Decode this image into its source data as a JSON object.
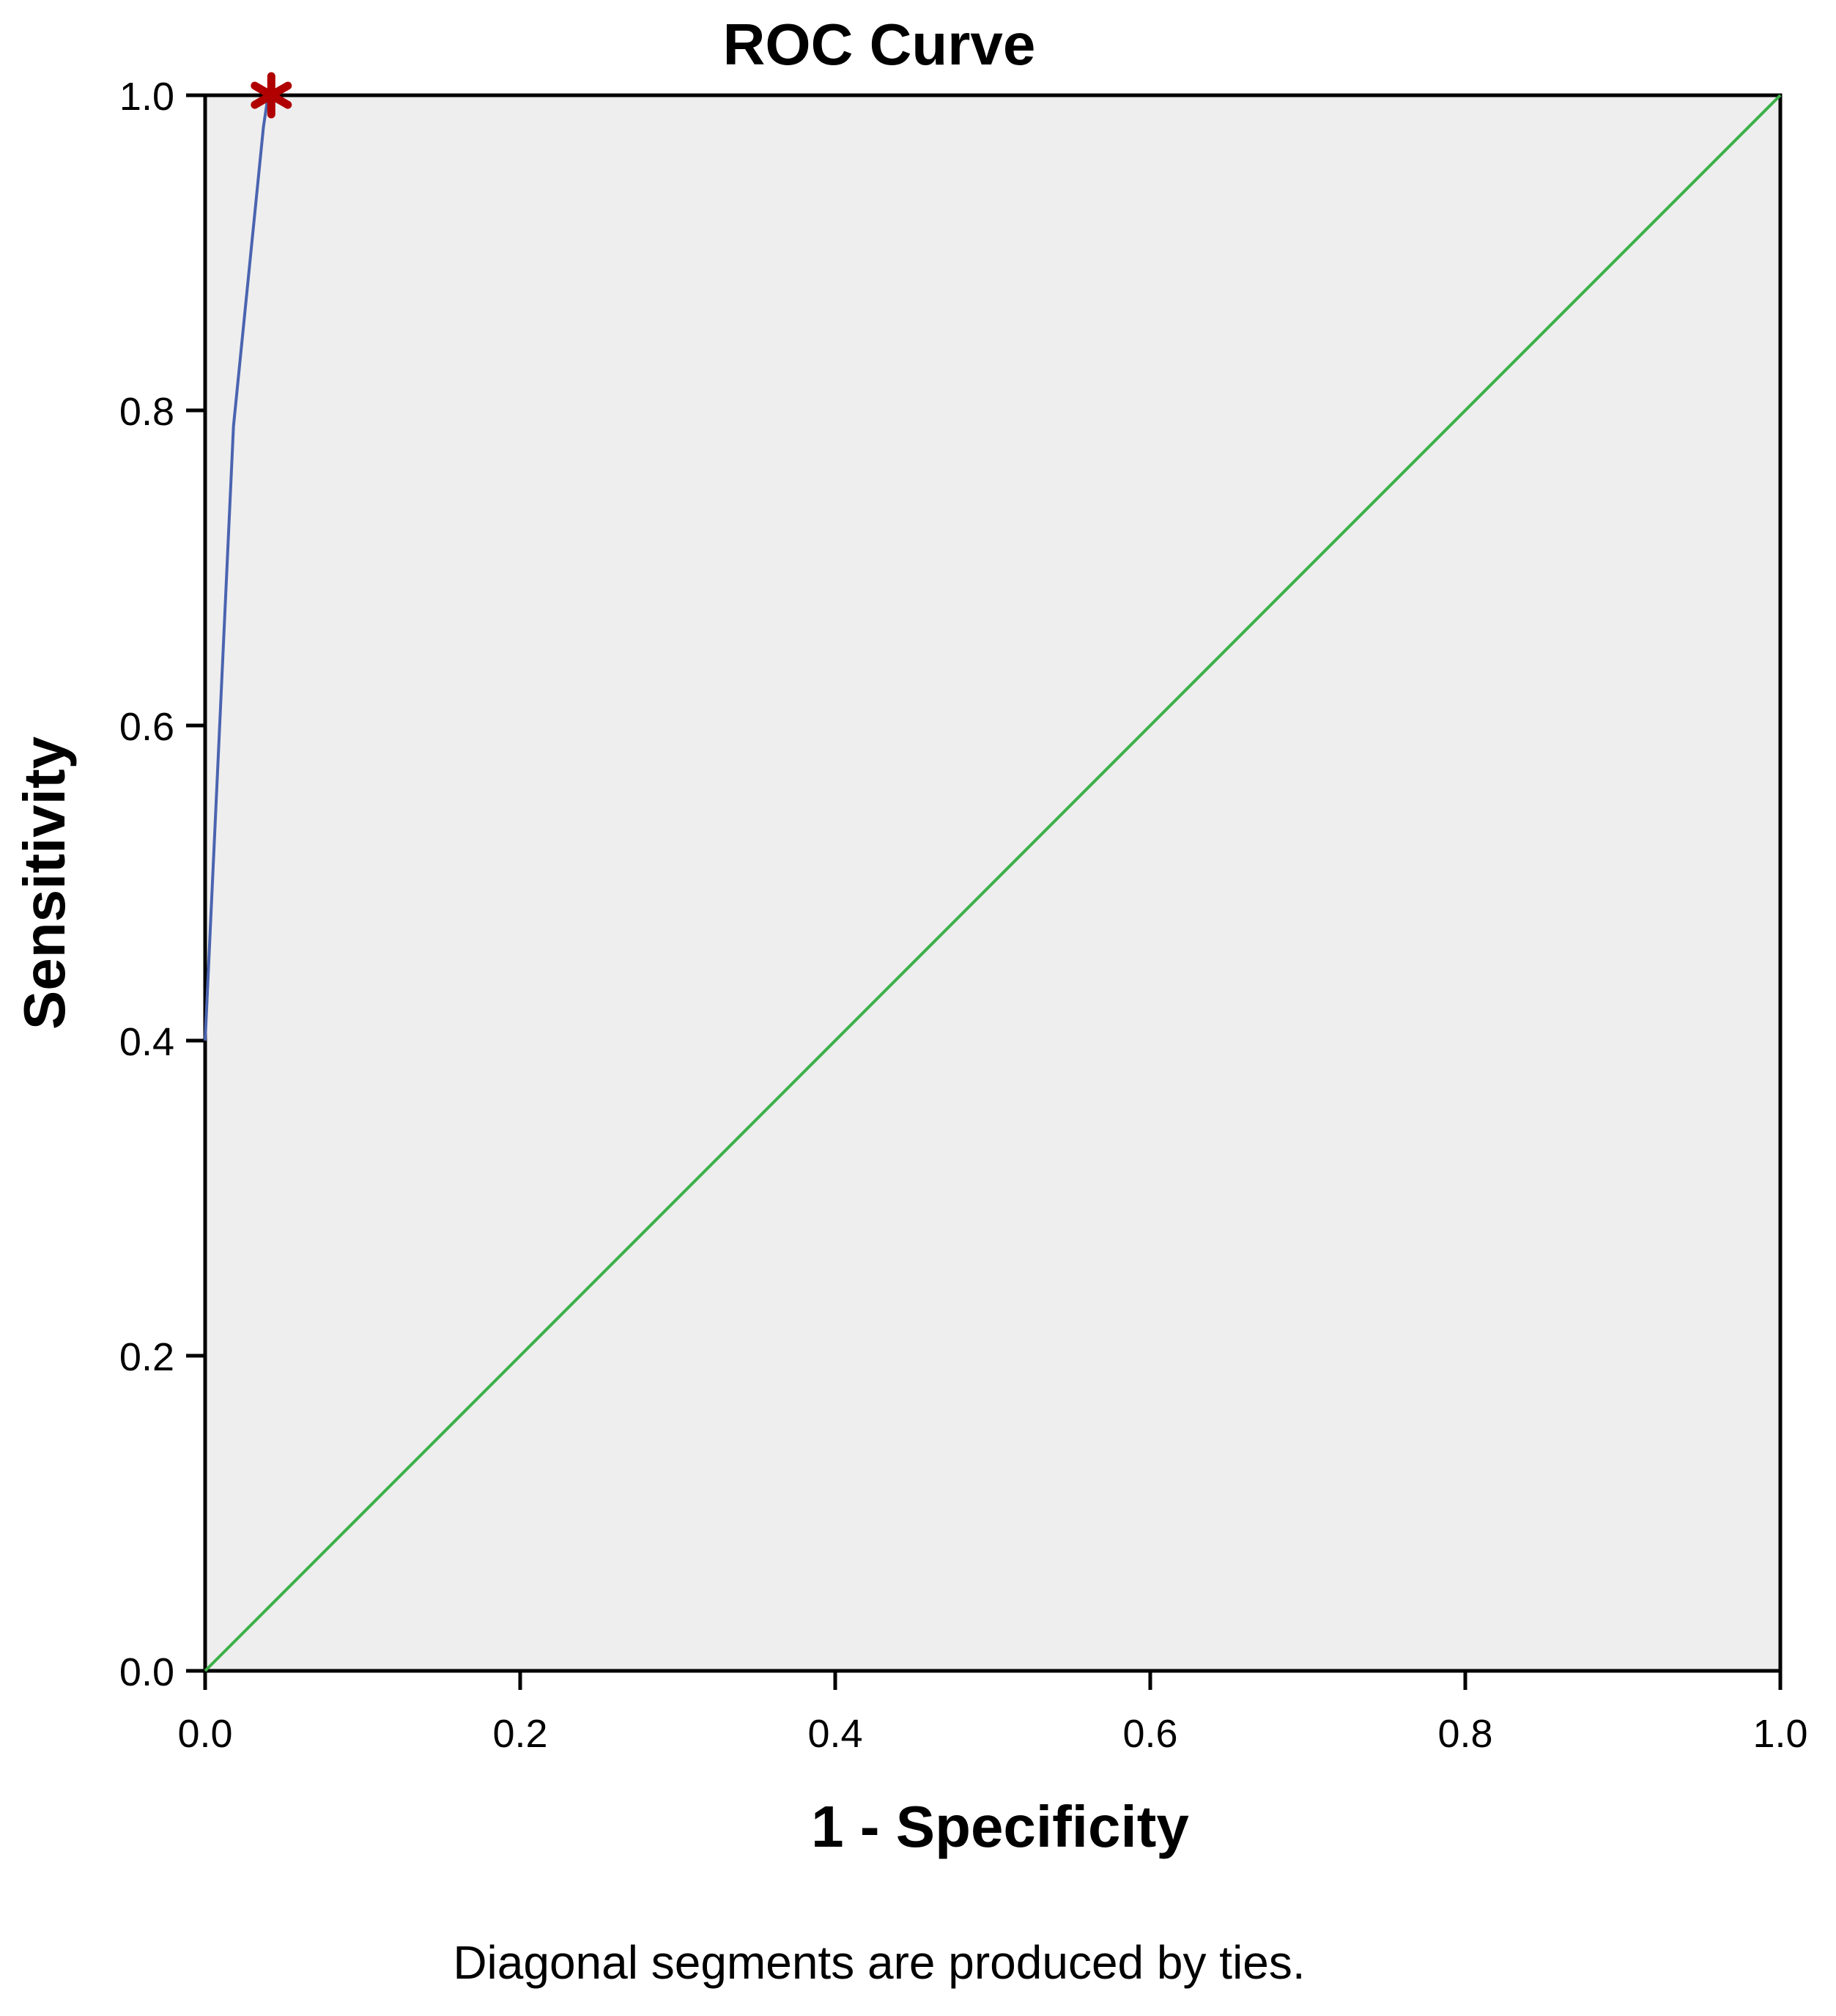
{
  "chart_data": {
    "type": "line",
    "title": "ROC Curve",
    "xlabel": "1 - Specificity",
    "ylabel": "Sensitivity",
    "xlim": [
      0,
      1
    ],
    "ylim": [
      0,
      1
    ],
    "x_ticks": [
      "0.0",
      "0.2",
      "0.4",
      "0.6",
      "0.8",
      "1.0"
    ],
    "y_ticks": [
      "0.0",
      "0.2",
      "0.4",
      "0.6",
      "0.8",
      "1.0"
    ],
    "grid": false,
    "background_color": "#eeeeee",
    "series": [
      {
        "color": "#4a64b0",
        "points": [
          [
            0.0,
            0.4
          ],
          [
            0.018,
            0.79
          ],
          [
            0.037,
            0.98
          ],
          [
            0.04,
            1.0
          ]
        ]
      },
      {
        "color": "#3cb04a",
        "points": [
          [
            0.0,
            0.0
          ],
          [
            1.0,
            1.0
          ]
        ]
      }
    ],
    "markers": [
      {
        "symbol": "*",
        "x": 0.042,
        "y": 1.0,
        "color": "#b00000"
      }
    ],
    "footnote": "Diagonal segments are produced by ties."
  }
}
